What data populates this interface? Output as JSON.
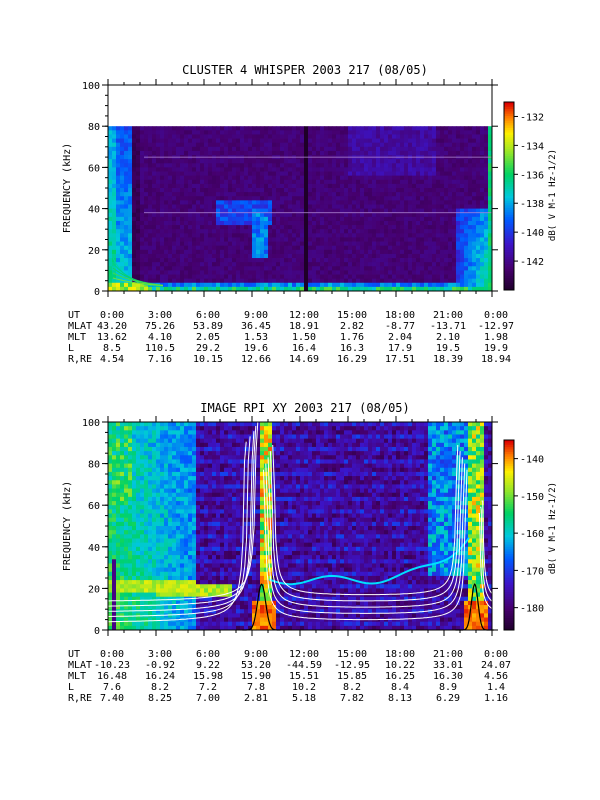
{
  "chart_data": [
    {
      "type": "heatmap",
      "title": "CLUSTER 4 WHISPER 2003 217 (08/05)",
      "ylabel": "FREQUENCY (kHz)",
      "ylim": [
        0,
        100
      ],
      "yticks": [
        "0",
        "20",
        "40",
        "60",
        "80",
        "100"
      ],
      "colorbar": {
        "label": "dB( V M⁻¹ Hz⁻¹ᐟ²)",
        "label_text": "dB( V M-1 Hz-1/2)",
        "ticks": [
          "-132",
          "-134",
          "-136",
          "-138",
          "-140",
          "-142"
        ],
        "range": [
          -144,
          -131
        ]
      },
      "data_top_khz": 80,
      "ephemeris": {
        "rows": [
          {
            "label": "UT",
            "values": [
              "0:00",
              "3:00",
              "6:00",
              "9:00",
              "12:00",
              "15:00",
              "18:00",
              "21:00",
              "0:00"
            ]
          },
          {
            "label": "MLAT",
            "values": [
              "43.20",
              "75.26",
              "53.89",
              "36.45",
              "18.91",
              "2.82",
              "-8.77",
              "-13.71",
              "-12.97"
            ]
          },
          {
            "label": "MLT",
            "values": [
              "13.62",
              "4.10",
              "2.05",
              "1.53",
              "1.50",
              "1.76",
              "2.04",
              "2.10",
              "1.98"
            ]
          },
          {
            "label": "L",
            "values": [
              "8.5",
              "110.5",
              "29.2",
              "19.6",
              "16.4",
              "16.3",
              "17.9",
              "19.5",
              "19.9"
            ]
          },
          {
            "label": "R,RE",
            "values": [
              "4.54",
              "7.16",
              "10.15",
              "12.66",
              "14.69",
              "16.29",
              "17.51",
              "18.39",
              "18.94"
            ]
          }
        ]
      }
    },
    {
      "type": "heatmap",
      "title": "IMAGE RPI XY 2003 217 (08/05)",
      "ylabel": "FREQUENCY (kHz)",
      "ylim": [
        0,
        100
      ],
      "yticks": [
        "0",
        "20",
        "40",
        "60",
        "80",
        "100"
      ],
      "colorbar": {
        "label_text": "dB( V M-1 Hz-1/2)",
        "ticks": [
          "-140",
          "-150",
          "-160",
          "-170",
          "-180"
        ],
        "range": [
          -186,
          -135
        ]
      },
      "ephemeris": {
        "rows": [
          {
            "label": "UT",
            "values": [
              "0:00",
              "3:00",
              "6:00",
              "9:00",
              "12:00",
              "15:00",
              "18:00",
              "21:00",
              "0:00"
            ]
          },
          {
            "label": "MLAT",
            "values": [
              "-10.23",
              "-0.92",
              "9.22",
              "53.20",
              "-44.59",
              "-12.95",
              "10.22",
              "33.01",
              "24.07"
            ]
          },
          {
            "label": "MLT",
            "values": [
              "16.48",
              "16.24",
              "15.98",
              "15.90",
              "15.51",
              "15.85",
              "16.25",
              "16.30",
              "4.56"
            ]
          },
          {
            "label": "L",
            "values": [
              "7.6",
              "8.2",
              "7.2",
              "7.8",
              "10.2",
              "8.2",
              "8.4",
              "8.9",
              "1.4"
            ]
          },
          {
            "label": "R,RE",
            "values": [
              "7.40",
              "8.25",
              "7.00",
              "2.81",
              "5.18",
              "7.82",
              "8.13",
              "6.29",
              "1.16"
            ]
          }
        ]
      }
    }
  ],
  "colors": {
    "background": "#ffffff",
    "axis": "#000000",
    "overlay_curves": "#ffffff",
    "black_curve": "#000000"
  }
}
